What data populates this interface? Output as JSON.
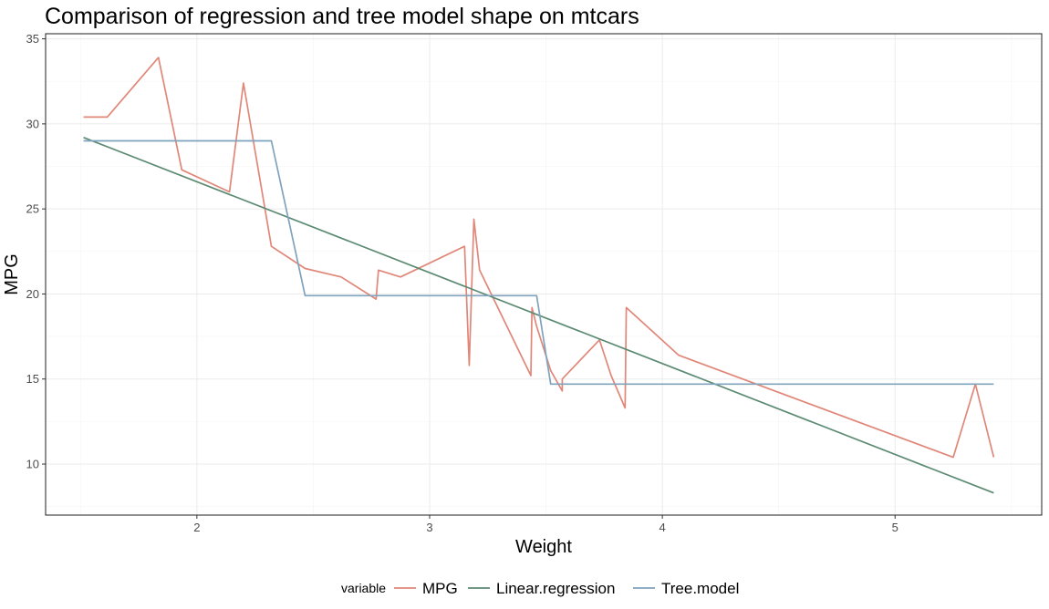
{
  "chart_data": {
    "type": "line",
    "title": "Comparison of regression and tree model shape on mtcars",
    "xlabel": "Weight",
    "ylabel": "MPG",
    "xlim": [
      1.35,
      5.63
    ],
    "ylim": [
      7.0,
      35.3
    ],
    "xticks": [
      2,
      3,
      4,
      5
    ],
    "yticks": [
      10,
      15,
      20,
      25,
      30,
      35
    ],
    "grid": true,
    "legend_title": "variable",
    "legend_position": "bottom",
    "series": [
      {
        "name": "MPG",
        "color": "#e08779",
        "points": [
          [
            1.513,
            30.4
          ],
          [
            1.615,
            30.4
          ],
          [
            1.835,
            33.9
          ],
          [
            1.935,
            27.3
          ],
          [
            2.14,
            26.0
          ],
          [
            2.2,
            32.4
          ],
          [
            2.32,
            22.8
          ],
          [
            2.465,
            21.5
          ],
          [
            2.62,
            21.0
          ],
          [
            2.77,
            19.7
          ],
          [
            2.78,
            21.4
          ],
          [
            2.875,
            21.0
          ],
          [
            3.15,
            22.8
          ],
          [
            3.17,
            15.8
          ],
          [
            3.19,
            24.4
          ],
          [
            3.215,
            21.4
          ],
          [
            3.435,
            15.2
          ],
          [
            3.44,
            19.2
          ],
          [
            3.46,
            18.1
          ],
          [
            3.52,
            15.5
          ],
          [
            3.57,
            14.3
          ],
          [
            3.57,
            15.0
          ],
          [
            3.73,
            17.3
          ],
          [
            3.78,
            15.2
          ],
          [
            3.84,
            13.3
          ],
          [
            3.845,
            19.2
          ],
          [
            4.07,
            16.4
          ],
          [
            5.25,
            10.4
          ],
          [
            5.345,
            14.7
          ],
          [
            5.424,
            10.4
          ]
        ]
      },
      {
        "name": "Linear.regression",
        "color": "#5b8a72",
        "points": [
          [
            1.513,
            29.2
          ],
          [
            5.424,
            8.3
          ]
        ]
      },
      {
        "name": "Tree.model",
        "color": "#7fa2bd",
        "points": [
          [
            1.513,
            29.0
          ],
          [
            2.32,
            29.0
          ],
          [
            2.465,
            19.9
          ],
          [
            3.46,
            19.9
          ],
          [
            3.52,
            14.7
          ],
          [
            5.424,
            14.7
          ]
        ]
      }
    ]
  }
}
